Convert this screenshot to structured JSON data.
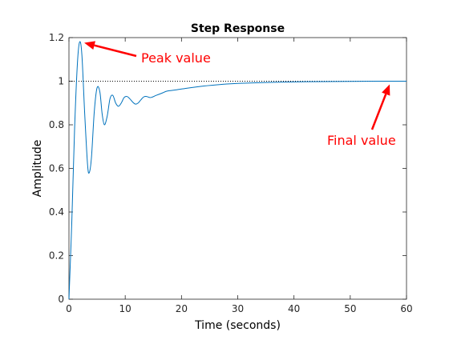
{
  "chart_data": {
    "type": "line",
    "title": "Step Response",
    "xlabel": "Time (seconds)",
    "ylabel": "Amplitude",
    "xlim": [
      0,
      60
    ],
    "ylim": [
      0,
      1.2
    ],
    "x_ticks": [
      0,
      10,
      20,
      30,
      40,
      50,
      60
    ],
    "x_tick_labels": [
      "0",
      "10",
      "20",
      "30",
      "40",
      "50",
      "60"
    ],
    "y_ticks": [
      0,
      0.2,
      0.4,
      0.6,
      0.8,
      1,
      1.2
    ],
    "y_tick_labels": [
      "0",
      "0.2",
      "0.4",
      "0.6",
      "0.8",
      "1",
      "1.2"
    ],
    "grid": false,
    "reference_line": {
      "y": 1,
      "style": "dotted"
    },
    "series": [
      {
        "color": "#0072bd",
        "x": [
          0,
          0.5,
          1,
          1.5,
          1.9,
          2.3,
          2.8,
          3.3,
          3.6,
          4.0,
          4.5,
          5.0,
          5.5,
          5.9,
          6.3,
          6.8,
          7.3,
          7.8,
          8.3,
          8.8,
          9.3,
          9.8,
          10.3,
          10.8,
          11.3,
          11.8,
          12.3,
          12.8,
          13.3,
          13.8,
          14.5,
          15.5,
          16.5,
          17.5,
          19,
          21,
          24,
          27,
          30,
          35,
          40,
          45,
          50,
          55,
          60
        ],
        "y": [
          0,
          0.35,
          0.78,
          1.08,
          1.18,
          1.12,
          0.85,
          0.62,
          0.58,
          0.65,
          0.86,
          0.97,
          0.95,
          0.85,
          0.8,
          0.84,
          0.92,
          0.935,
          0.9,
          0.885,
          0.9,
          0.925,
          0.93,
          0.92,
          0.905,
          0.895,
          0.9,
          0.915,
          0.928,
          0.93,
          0.925,
          0.935,
          0.945,
          0.955,
          0.96,
          0.968,
          0.978,
          0.985,
          0.99,
          0.994,
          0.997,
          0.998,
          0.999,
          1.0,
          1.0
        ]
      }
    ],
    "annotations": [
      {
        "text": "Peak value",
        "target": {
          "x": 2.0,
          "y": 1.18
        },
        "color": "#ff0000"
      },
      {
        "text": "Final value",
        "target": {
          "x": 57,
          "y": 1.0
        },
        "color": "#ff0000"
      }
    ]
  }
}
